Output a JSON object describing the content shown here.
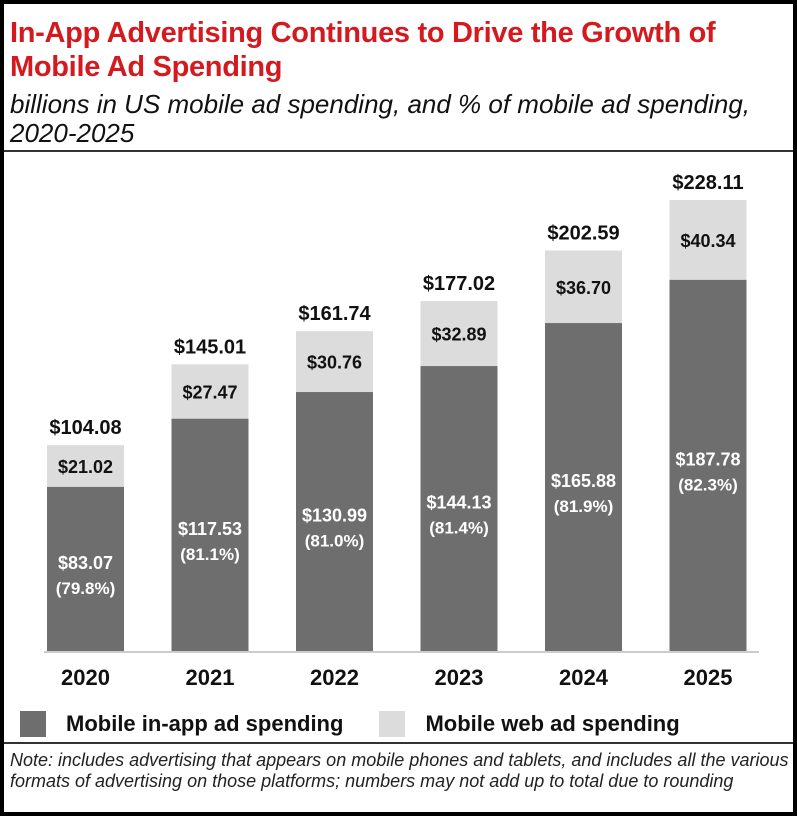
{
  "title": "In-App Advertising Continues to Drive the Growth of Mobile Ad Spending",
  "subtitle": "billions in US mobile ad spending, and % of mobile ad spending, 2020-2025",
  "note": "Note: includes advertising that appears on mobile phones and tablets, and includes all the various formats of advertising on those platforms; numbers may not add up to total due to rounding",
  "colors": {
    "title": "#d4191f",
    "in_app": "#6e6e6e",
    "web": "#dcdcdc"
  },
  "chart_data": {
    "type": "bar",
    "stacked": true,
    "categories": [
      "2020",
      "2021",
      "2022",
      "2023",
      "2024",
      "2025"
    ],
    "series": [
      {
        "name": "Mobile in-app ad spending",
        "values": [
          83.07,
          117.53,
          130.99,
          144.13,
          165.88,
          187.78
        ],
        "labels": [
          "$83.07",
          "$117.53",
          "$130.99",
          "$144.13",
          "$165.88",
          "$187.78"
        ],
        "share_labels": [
          "(79.8%)",
          "(81.1%)",
          "(81.0%)",
          "(81.4%)",
          "(81.9%)",
          "(82.3%)"
        ]
      },
      {
        "name": "Mobile web ad spending",
        "values": [
          21.02,
          27.47,
          30.76,
          32.89,
          36.7,
          40.34
        ],
        "labels": [
          "$21.02",
          "$27.47",
          "$30.76",
          "$32.89",
          "$36.70",
          "$40.34"
        ]
      }
    ],
    "totals": [
      104.08,
      145.01,
      161.74,
      177.02,
      202.59,
      228.11
    ],
    "total_labels": [
      "$104.08",
      "$145.01",
      "$161.74",
      "$177.02",
      "$202.59",
      "$228.11"
    ],
    "ylim": [
      0,
      228.11
    ],
    "grid": false,
    "legend": "bottom"
  }
}
